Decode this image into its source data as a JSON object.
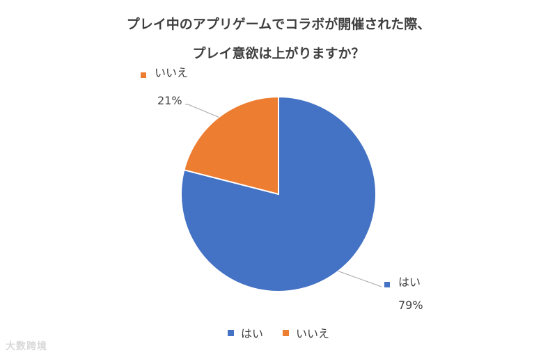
{
  "title_lines": [
    "プレイ中のアプリゲームでコラボが開催された際、",
    "プレイ意欲は上がりますか？"
  ],
  "chart_data": {
    "type": "pie",
    "categories": [
      "はい",
      "いいえ"
    ],
    "values": [
      79,
      21
    ],
    "data_labels": [
      "79%",
      "21%"
    ],
    "colors": [
      "#4472c4",
      "#ed7d31"
    ],
    "legend_position": "bottom",
    "start_angle": "12 o'clock, clockwise"
  },
  "watermark": "大数跨境"
}
